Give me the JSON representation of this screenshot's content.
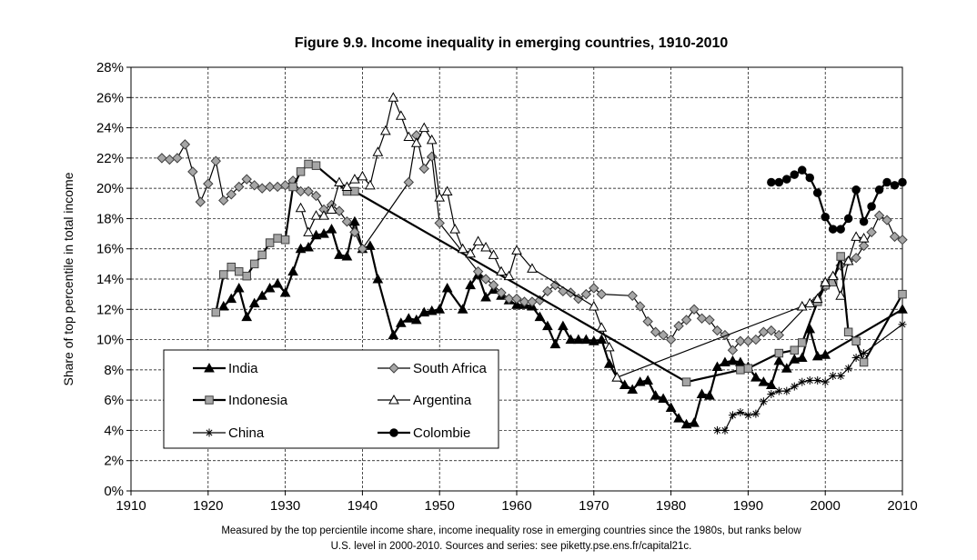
{
  "colors": {
    "dark": "#000000",
    "gray_marker": "#a6a6a6",
    "white": "#ffffff"
  },
  "caption": {
    "line1": "Measured by the top percientile income share, income inequality rose in emerging countries since the 1980s, but ranks below",
    "line2": "U.S. level in 2000-2010. Sources and series: see piketty.pse.ens.fr/capital21c."
  },
  "chart_data": {
    "type": "line",
    "title": "Figure 9.9. Income inequality in emerging countries, 1910-2010",
    "xlabel": "",
    "ylabel": "Share of top percentile in total income",
    "xlim": [
      1910,
      2010
    ],
    "ylim": [
      0,
      28
    ],
    "x_ticks": [
      1910,
      1920,
      1930,
      1940,
      1950,
      1960,
      1970,
      1980,
      1990,
      2000,
      2010
    ],
    "y_ticks": [
      "0%",
      "2%",
      "4%",
      "6%",
      "8%",
      "10%",
      "12%",
      "14%",
      "16%",
      "18%",
      "20%",
      "22%",
      "24%",
      "26%",
      "28%"
    ],
    "grid": true,
    "legend_position": "bottom-left",
    "series": [
      {
        "name": "India",
        "marker": "triangle-filled",
        "line": "thick",
        "points": [
          [
            1922,
            12.2
          ],
          [
            1923,
            12.7
          ],
          [
            1924,
            13.4
          ],
          [
            1925,
            11.5
          ],
          [
            1926,
            12.4
          ],
          [
            1927,
            12.9
          ],
          [
            1928,
            13.4
          ],
          [
            1929,
            13.7
          ],
          [
            1930,
            13.1
          ],
          [
            1931,
            14.5
          ],
          [
            1932,
            16.0
          ],
          [
            1933,
            16.1
          ],
          [
            1934,
            16.9
          ],
          [
            1935,
            17.0
          ],
          [
            1936,
            17.3
          ],
          [
            1937,
            15.6
          ],
          [
            1938,
            15.5
          ],
          [
            1939,
            17.8
          ],
          [
            1940,
            16.0
          ],
          [
            1941,
            16.2
          ],
          [
            1942,
            14.0
          ],
          [
            1944,
            10.3
          ],
          [
            1945,
            11.1
          ],
          [
            1946,
            11.4
          ],
          [
            1947,
            11.3
          ],
          [
            1948,
            11.8
          ],
          [
            1949,
            11.9
          ],
          [
            1950,
            12.0
          ],
          [
            1951,
            13.4
          ],
          [
            1953,
            12.0
          ],
          [
            1954,
            13.6
          ],
          [
            1955,
            14.3
          ],
          [
            1956,
            12.8
          ],
          [
            1957,
            13.3
          ],
          [
            1958,
            12.9
          ],
          [
            1959,
            12.6
          ],
          [
            1960,
            12.3
          ],
          [
            1961,
            12.3
          ],
          [
            1962,
            12.2
          ],
          [
            1963,
            11.5
          ],
          [
            1964,
            10.9
          ],
          [
            1965,
            9.7
          ],
          [
            1966,
            10.9
          ],
          [
            1967,
            10.0
          ],
          [
            1968,
            10.0
          ],
          [
            1969,
            10.0
          ],
          [
            1970,
            9.9
          ],
          [
            1971,
            10.0
          ],
          [
            1972,
            8.4
          ],
          [
            1973,
            7.5
          ],
          [
            1974,
            7.0
          ],
          [
            1975,
            6.7
          ],
          [
            1976,
            7.2
          ],
          [
            1977,
            7.3
          ],
          [
            1978,
            6.3
          ],
          [
            1979,
            6.1
          ],
          [
            1980,
            5.5
          ],
          [
            1981,
            4.8
          ],
          [
            1982,
            4.4
          ],
          [
            1983,
            4.5
          ],
          [
            1984,
            6.4
          ],
          [
            1985,
            6.3
          ],
          [
            1986,
            8.2
          ],
          [
            1987,
            8.5
          ],
          [
            1988,
            8.6
          ],
          [
            1989,
            8.5
          ],
          [
            1990,
            8.2
          ],
          [
            1991,
            7.5
          ],
          [
            1992,
            7.2
          ],
          [
            1993,
            7.0
          ],
          [
            1994,
            8.6
          ],
          [
            1995,
            8.1
          ],
          [
            1996,
            8.7
          ],
          [
            1997,
            8.8
          ],
          [
            1998,
            10.7
          ],
          [
            1999,
            8.9
          ],
          [
            2000,
            9.0
          ],
          [
            2010,
            12.0
          ]
        ]
      },
      {
        "name": "South Africa",
        "marker": "diamond-gray",
        "line": "thin",
        "points": [
          [
            1914,
            22.0
          ],
          [
            1915,
            21.9
          ],
          [
            1916,
            22.0
          ],
          [
            1917,
            22.9
          ],
          [
            1918,
            21.1
          ],
          [
            1919,
            19.1
          ],
          [
            1920,
            20.3
          ],
          [
            1921,
            21.8
          ],
          [
            1922,
            19.2
          ],
          [
            1923,
            19.6
          ],
          [
            1924,
            20.1
          ],
          [
            1925,
            20.6
          ],
          [
            1926,
            20.2
          ],
          [
            1927,
            20.0
          ],
          [
            1928,
            20.1
          ],
          [
            1929,
            20.1
          ],
          [
            1930,
            20.2
          ],
          [
            1931,
            20.5
          ],
          [
            1932,
            19.8
          ],
          [
            1933,
            19.8
          ],
          [
            1934,
            19.5
          ],
          [
            1935,
            18.6
          ],
          [
            1936,
            18.9
          ],
          [
            1937,
            18.5
          ],
          [
            1938,
            17.8
          ],
          [
            1939,
            17.1
          ],
          [
            1940,
            16.0
          ],
          [
            1946,
            20.4
          ],
          [
            1947,
            23.5
          ],
          [
            1948,
            21.3
          ],
          [
            1949,
            22.1
          ],
          [
            1950,
            17.7
          ],
          [
            1955,
            14.5
          ],
          [
            1956,
            14.0
          ],
          [
            1957,
            13.6
          ],
          [
            1958,
            13.1
          ],
          [
            1959,
            12.7
          ],
          [
            1960,
            12.7
          ],
          [
            1961,
            12.5
          ],
          [
            1962,
            12.5
          ],
          [
            1963,
            12.6
          ],
          [
            1964,
            13.2
          ],
          [
            1965,
            13.6
          ],
          [
            1966,
            13.2
          ],
          [
            1967,
            13.1
          ],
          [
            1968,
            12.7
          ],
          [
            1969,
            13.0
          ],
          [
            1970,
            13.4
          ],
          [
            1971,
            13.0
          ],
          [
            1975,
            12.9
          ],
          [
            1976,
            12.2
          ],
          [
            1977,
            11.2
          ],
          [
            1978,
            10.5
          ],
          [
            1979,
            10.3
          ],
          [
            1980,
            10.0
          ],
          [
            1981,
            10.9
          ],
          [
            1982,
            11.3
          ],
          [
            1983,
            12.0
          ],
          [
            1984,
            11.4
          ],
          [
            1985,
            11.3
          ],
          [
            1986,
            10.6
          ],
          [
            1987,
            10.3
          ],
          [
            1988,
            9.3
          ],
          [
            1989,
            9.9
          ],
          [
            1990,
            9.9
          ],
          [
            1991,
            10.0
          ],
          [
            1992,
            10.5
          ],
          [
            1993,
            10.6
          ],
          [
            1994,
            10.3
          ],
          [
            2000,
            13.5
          ],
          [
            2001,
            14.1
          ],
          [
            2002,
            14.9
          ],
          [
            2003,
            15.2
          ],
          [
            2004,
            15.4
          ],
          [
            2005,
            16.2
          ],
          [
            2006,
            17.1
          ],
          [
            2007,
            18.2
          ],
          [
            2008,
            17.9
          ],
          [
            2009,
            16.8
          ],
          [
            2010,
            16.6
          ]
        ]
      },
      {
        "name": "Indonesia",
        "marker": "square-gray",
        "line": "thick",
        "points": [
          [
            1921,
            11.8
          ],
          [
            1922,
            14.3
          ],
          [
            1923,
            14.8
          ],
          [
            1924,
            14.5
          ],
          [
            1925,
            14.2
          ],
          [
            1926,
            15.0
          ],
          [
            1927,
            15.6
          ],
          [
            1928,
            16.4
          ],
          [
            1929,
            16.7
          ],
          [
            1930,
            16.6
          ],
          [
            1931,
            20.1
          ],
          [
            1932,
            21.1
          ],
          [
            1933,
            21.6
          ],
          [
            1934,
            21.5
          ],
          [
            1938,
            19.8
          ],
          [
            1939,
            19.8
          ],
          [
            1982,
            7.2
          ],
          [
            1989,
            8.0
          ],
          [
            1990,
            8.1
          ],
          [
            1994,
            9.1
          ],
          [
            1996,
            9.3
          ],
          [
            1997,
            9.8
          ],
          [
            1999,
            12.5
          ],
          [
            2000,
            13.6
          ],
          [
            2001,
            13.8
          ],
          [
            2002,
            15.5
          ],
          [
            2003,
            10.5
          ],
          [
            2004,
            9.9
          ],
          [
            2005,
            8.5
          ],
          [
            2010,
            13.0
          ]
        ]
      },
      {
        "name": "Argentina",
        "marker": "triangle-open",
        "line": "thin",
        "points": [
          [
            1932,
            18.7
          ],
          [
            1933,
            17.1
          ],
          [
            1934,
            18.2
          ],
          [
            1935,
            18.2
          ],
          [
            1936,
            18.6
          ],
          [
            1937,
            20.4
          ],
          [
            1938,
            20.1
          ],
          [
            1939,
            20.6
          ],
          [
            1940,
            20.8
          ],
          [
            1941,
            20.2
          ],
          [
            1942,
            22.4
          ],
          [
            1943,
            23.8
          ],
          [
            1944,
            26.0
          ],
          [
            1945,
            24.8
          ],
          [
            1946,
            23.4
          ],
          [
            1947,
            23.0
          ],
          [
            1948,
            24.0
          ],
          [
            1949,
            23.2
          ],
          [
            1950,
            19.4
          ],
          [
            1951,
            19.8
          ],
          [
            1952,
            17.3
          ],
          [
            1953,
            16.0
          ],
          [
            1954,
            15.7
          ],
          [
            1955,
            16.5
          ],
          [
            1956,
            16.1
          ],
          [
            1957,
            15.6
          ],
          [
            1958,
            14.5
          ],
          [
            1959,
            14.2
          ],
          [
            1960,
            15.9
          ],
          [
            1962,
            14.7
          ],
          [
            1970,
            12.2
          ],
          [
            1971,
            10.8
          ],
          [
            1972,
            9.5
          ],
          [
            1973,
            7.5
          ],
          [
            1997,
            12.2
          ],
          [
            1998,
            12.4
          ],
          [
            1999,
            12.7
          ],
          [
            2000,
            13.8
          ],
          [
            2001,
            14.2
          ],
          [
            2002,
            12.9
          ],
          [
            2003,
            15.2
          ],
          [
            2004,
            16.8
          ],
          [
            2005,
            16.7
          ]
        ]
      },
      {
        "name": "China",
        "marker": "star",
        "line": "thin",
        "points": [
          [
            1986,
            4.0
          ],
          [
            1987,
            4.0
          ],
          [
            1988,
            5.0
          ],
          [
            1989,
            5.2
          ],
          [
            1990,
            5.0
          ],
          [
            1991,
            5.1
          ],
          [
            1992,
            5.9
          ],
          [
            1993,
            6.4
          ],
          [
            1994,
            6.6
          ],
          [
            1995,
            6.6
          ],
          [
            1996,
            6.9
          ],
          [
            1997,
            7.2
          ],
          [
            1998,
            7.3
          ],
          [
            1999,
            7.3
          ],
          [
            2000,
            7.2
          ],
          [
            2001,
            7.6
          ],
          [
            2002,
            7.6
          ],
          [
            2003,
            8.1
          ],
          [
            2004,
            8.8
          ],
          [
            2005,
            9.1
          ],
          [
            2010,
            11.0
          ]
        ]
      },
      {
        "name": "Colombie",
        "marker": "circle-filled",
        "line": "thick",
        "points": [
          [
            1993,
            20.4
          ],
          [
            1994,
            20.4
          ],
          [
            1995,
            20.6
          ],
          [
            1996,
            20.9
          ],
          [
            1997,
            21.2
          ],
          [
            1998,
            20.7
          ],
          [
            1999,
            19.7
          ],
          [
            2000,
            18.1
          ],
          [
            2001,
            17.3
          ],
          [
            2002,
            17.3
          ],
          [
            2003,
            18.0
          ],
          [
            2004,
            19.9
          ],
          [
            2005,
            17.8
          ],
          [
            2006,
            18.8
          ],
          [
            2007,
            19.9
          ],
          [
            2008,
            20.4
          ],
          [
            2009,
            20.2
          ],
          [
            2010,
            20.4
          ]
        ]
      }
    ]
  }
}
